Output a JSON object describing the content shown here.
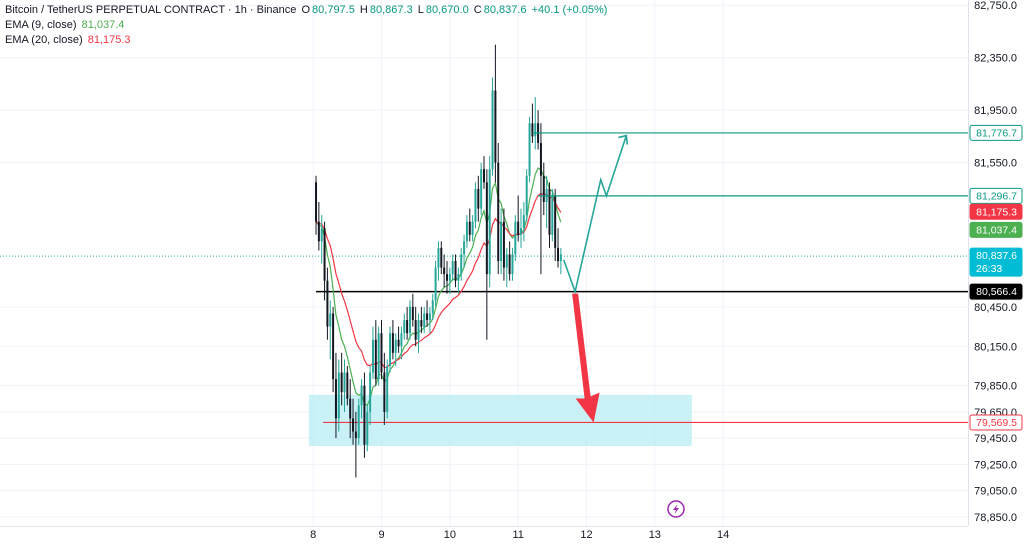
{
  "legend": {
    "symbol": "Bitcoin / TetherUS PERPETUAL CONTRACT · 1h · Binance",
    "o_key": "O",
    "o_val": "80,797.5",
    "h_key": "H",
    "h_val": "80,867.3",
    "l_key": "L",
    "l_val": "80,670.0",
    "c_key": "C",
    "c_val": "80,837.6",
    "change": "+40.1 (+0.05%)",
    "ema9_label": "EMA (9, close)",
    "ema9_val": "81,037.4",
    "ema20_label": "EMA (20, close)",
    "ema20_val": "81,175.3"
  },
  "colors": {
    "up": "#26a69a",
    "down": "#131722",
    "ema9": "#4caf50",
    "ema20": "#f23645",
    "accent_green": "#089981",
    "zone": "#b2ebf2",
    "arrow_red": "#f23645",
    "line_black": "#000000",
    "last_price_bg": "#00bcd4"
  },
  "chart_data": {
    "type": "candlestick",
    "y_ticks": [
      "82,750.0",
      "82,350.0",
      "81,950.0",
      "81,550.0",
      "80,450.0",
      "80,150.0",
      "79,850.0",
      "79,650.0",
      "79,450.0",
      "79,250.0",
      "79,050.0",
      "78,850.0"
    ],
    "x_ticks": [
      "8",
      "9",
      "10",
      "11",
      "12",
      "13",
      "14"
    ],
    "price_labels": [
      {
        "text": "81,776.7",
        "kind": "green-outline"
      },
      {
        "text": "81,296.7",
        "kind": "green-outline"
      },
      {
        "text": "81,175.3",
        "kind": "red"
      },
      {
        "text": "81,037.4",
        "kind": "green"
      },
      {
        "text": "80,837.6",
        "sub": "26:33",
        "kind": "cyan"
      },
      {
        "text": "80,566.4",
        "kind": "black"
      },
      {
        "text": "79,569.5",
        "kind": "red-outline"
      }
    ],
    "levels": {
      "support": 80566.4,
      "target_low": 79569.5,
      "tp1": 81296.7,
      "tp2": 81776.7,
      "zone_top": 79780,
      "zone_bottom": 79390,
      "last_price": 80837.6
    },
    "ylim": [
      78780,
      82790
    ],
    "x_range_hours": [
      -110,
      230
    ],
    "ema9_last": 81037.4,
    "ema20_last": 81175.3,
    "candles": [
      [
        81400,
        81450,
        81000,
        81100
      ],
      [
        81100,
        81250,
        80880,
        80950
      ],
      [
        80950,
        81150,
        80780,
        81050
      ],
      [
        81050,
        81100,
        80500,
        80650
      ],
      [
        80650,
        80750,
        80200,
        80300
      ],
      [
        80300,
        80500,
        80050,
        80400
      ],
      [
        80400,
        80450,
        79800,
        79900
      ],
      [
        79900,
        80100,
        79450,
        79600
      ],
      [
        79600,
        80050,
        79500,
        79950
      ],
      [
        79950,
        80100,
        79700,
        79800
      ],
      [
        79800,
        80050,
        79650,
        79950
      ],
      [
        79950,
        80000,
        79700,
        79750
      ],
      [
        79750,
        79900,
        79450,
        79600
      ],
      [
        79600,
        79750,
        79400,
        79500
      ],
      [
        79500,
        79650,
        79150,
        79450
      ],
      [
        79450,
        79750,
        79400,
        79700
      ],
      [
        79700,
        79900,
        79600,
        79850
      ],
      [
        79850,
        79950,
        79300,
        79400
      ],
      [
        79400,
        79700,
        79350,
        79650
      ],
      [
        79650,
        80000,
        79550,
        79950
      ],
      [
        79950,
        80300,
        79900,
        80200
      ],
      [
        80200,
        80350,
        79850,
        79900
      ],
      [
        79900,
        80300,
        79850,
        80250
      ],
      [
        80250,
        80350,
        79900,
        79950
      ],
      [
        79950,
        80100,
        79550,
        79650
      ],
      [
        79650,
        80050,
        79600,
        80000
      ],
      [
        80000,
        80300,
        79950,
        80250
      ],
      [
        80250,
        80350,
        80050,
        80100
      ],
      [
        80100,
        80250,
        80000,
        80200
      ],
      [
        80200,
        80300,
        80100,
        80150
      ],
      [
        80150,
        80300,
        80050,
        80250
      ],
      [
        80250,
        80400,
        80200,
        80350
      ],
      [
        80350,
        80450,
        80200,
        80250
      ],
      [
        80250,
        80500,
        80200,
        80450
      ],
      [
        80450,
        80550,
        80300,
        80350
      ],
      [
        80350,
        80450,
        80150,
        80200
      ],
      [
        80200,
        80400,
        80100,
        80350
      ],
      [
        80350,
        80450,
        80250,
        80300
      ],
      [
        80300,
        80450,
        80250,
        80400
      ],
      [
        80400,
        80500,
        80300,
        80350
      ],
      [
        80350,
        80450,
        80250,
        80400
      ],
      [
        80400,
        80550,
        80350,
        80500
      ],
      [
        80500,
        80800,
        80450,
        80750
      ],
      [
        80750,
        80950,
        80650,
        80900
      ],
      [
        80900,
        80950,
        80700,
        80750
      ],
      [
        80750,
        80850,
        80600,
        80700
      ],
      [
        80700,
        80800,
        80550,
        80650
      ],
      [
        80650,
        80750,
        80550,
        80700
      ],
      [
        80700,
        80850,
        80650,
        80800
      ],
      [
        80800,
        80850,
        80600,
        80650
      ],
      [
        80650,
        80750,
        80550,
        80700
      ],
      [
        80700,
        80900,
        80650,
        80850
      ],
      [
        80850,
        81000,
        80750,
        80950
      ],
      [
        80950,
        81150,
        80900,
        81100
      ],
      [
        81100,
        81200,
        80950,
        81000
      ],
      [
        81000,
        81150,
        80950,
        81100
      ],
      [
        81100,
        81400,
        81050,
        81350
      ],
      [
        81350,
        81450,
        81100,
        81200
      ],
      [
        81200,
        81550,
        81150,
        81500
      ],
      [
        81500,
        81600,
        81350,
        81400
      ],
      [
        81400,
        81500,
        80200,
        80700
      ],
      [
        80700,
        81600,
        80600,
        81500
      ],
      [
        81500,
        82200,
        81450,
        82100
      ],
      [
        82100,
        82450,
        81400,
        81550
      ],
      [
        81550,
        81700,
        80700,
        80800
      ],
      [
        80800,
        81200,
        80700,
        81100
      ],
      [
        81100,
        81200,
        80650,
        80750
      ],
      [
        80750,
        80900,
        80600,
        80850
      ],
      [
        80850,
        80950,
        80650,
        80700
      ],
      [
        80700,
        80900,
        80650,
        80850
      ],
      [
        80850,
        81150,
        80800,
        81100
      ],
      [
        81100,
        81300,
        80950,
        81000
      ],
      [
        81000,
        81200,
        80900,
        81050
      ],
      [
        81050,
        81250,
        80950,
        81150
      ],
      [
        81150,
        81500,
        81100,
        81450
      ],
      [
        81450,
        81900,
        81400,
        81850
      ],
      [
        81850,
        82000,
        81700,
        81750
      ],
      [
        81750,
        82050,
        81650,
        81850
      ],
      [
        81850,
        81950,
        81650,
        81700
      ],
      [
        81700,
        81850,
        80700,
        81450
      ],
      [
        81450,
        81550,
        81150,
        81250
      ],
      [
        81250,
        81450,
        81050,
        81350
      ],
      [
        81350,
        81400,
        80900,
        81000
      ],
      [
        81000,
        81350,
        80950,
        81300
      ],
      [
        81300,
        81350,
        80800,
        80900
      ],
      [
        80900,
        81050,
        80750,
        80800
      ],
      [
        80800,
        80900,
        80700,
        80850
      ]
    ]
  }
}
